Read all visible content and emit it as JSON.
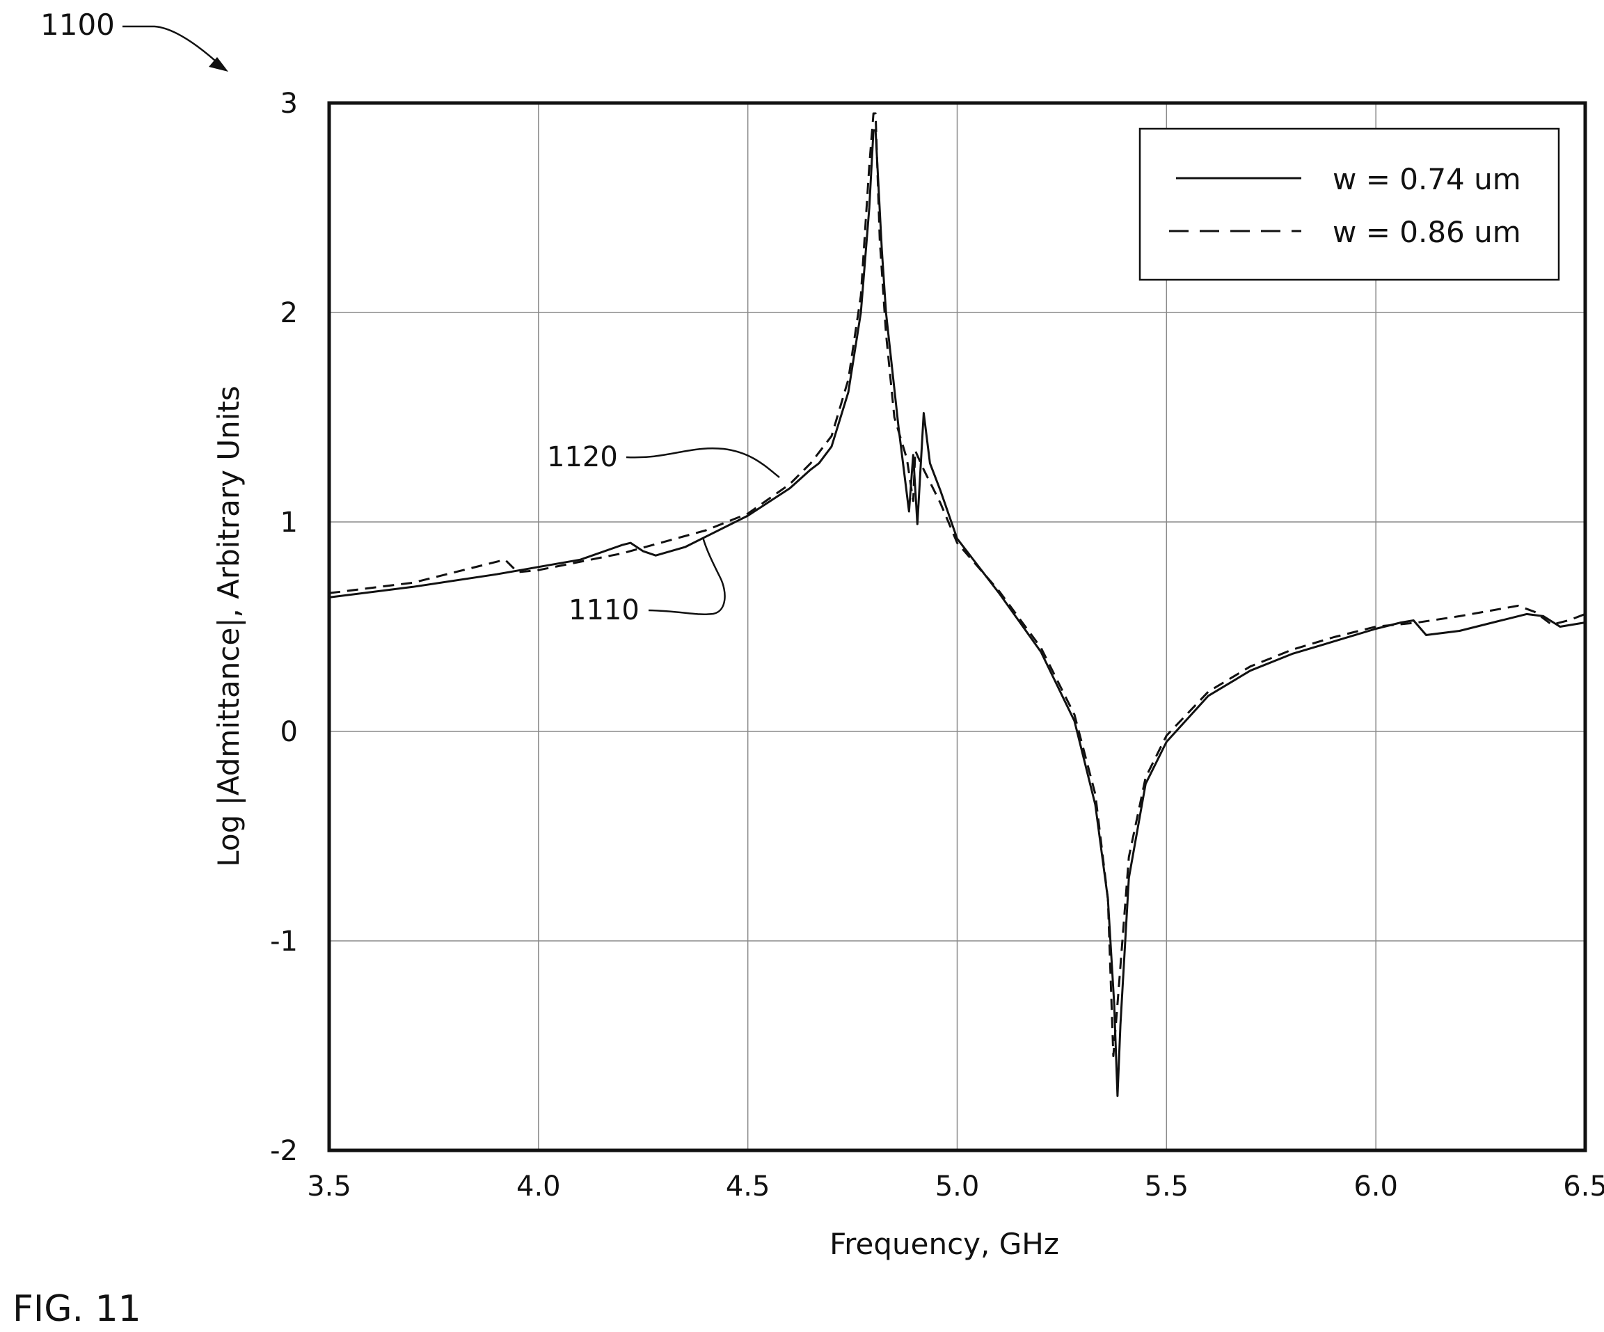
{
  "figure_number": "1100",
  "figure_caption": "FIG. 11",
  "chart_data": {
    "type": "line",
    "xlabel": "Frequency, GHz",
    "ylabel": "Log |Admittance|, Arbitrary Units",
    "xlim": [
      3.5,
      6.5
    ],
    "ylim": [
      -2,
      3
    ],
    "xticks": [
      "3.5",
      "4.0",
      "4.5",
      "5.0",
      "5.5",
      "6.0",
      "6.5"
    ],
    "yticks": [
      "3",
      "2",
      "1",
      "0",
      "-1",
      "-2"
    ],
    "grid": true,
    "legend_position": "top-right",
    "series": [
      {
        "name": "w = 0.74 um",
        "ref": "1110",
        "style": "solid",
        "points": [
          [
            3.5,
            0.64
          ],
          [
            3.7,
            0.69
          ],
          [
            3.9,
            0.75
          ],
          [
            4.1,
            0.82
          ],
          [
            4.2,
            0.89
          ],
          [
            4.22,
            0.9
          ],
          [
            4.25,
            0.86
          ],
          [
            4.28,
            0.84
          ],
          [
            4.35,
            0.88
          ],
          [
            4.5,
            1.03
          ],
          [
            4.6,
            1.16
          ],
          [
            4.65,
            1.25
          ],
          [
            4.67,
            1.28
          ],
          [
            4.7,
            1.36
          ],
          [
            4.74,
            1.62
          ],
          [
            4.77,
            2.0
          ],
          [
            4.79,
            2.5
          ],
          [
            4.8,
            2.87
          ],
          [
            4.805,
            2.87
          ],
          [
            4.82,
            2.3
          ],
          [
            4.83,
            2.0
          ],
          [
            4.86,
            1.45
          ],
          [
            4.885,
            1.05
          ],
          [
            4.895,
            1.32
          ],
          [
            4.905,
            0.99
          ],
          [
            4.92,
            1.52
          ],
          [
            4.935,
            1.28
          ],
          [
            4.96,
            1.15
          ],
          [
            5.0,
            0.92
          ],
          [
            5.1,
            0.66
          ],
          [
            5.2,
            0.38
          ],
          [
            5.28,
            0.05
          ],
          [
            5.33,
            -0.35
          ],
          [
            5.36,
            -0.8
          ],
          [
            5.375,
            -1.3
          ],
          [
            5.383,
            -1.74
          ],
          [
            5.39,
            -1.4
          ],
          [
            5.41,
            -0.7
          ],
          [
            5.45,
            -0.25
          ],
          [
            5.5,
            -0.05
          ],
          [
            5.6,
            0.17
          ],
          [
            5.7,
            0.29
          ],
          [
            5.8,
            0.37
          ],
          [
            5.9,
            0.43
          ],
          [
            6.0,
            0.49
          ],
          [
            6.06,
            0.52
          ],
          [
            6.09,
            0.53
          ],
          [
            6.12,
            0.46
          ],
          [
            6.2,
            0.48
          ],
          [
            6.36,
            0.56
          ],
          [
            6.4,
            0.55
          ],
          [
            6.44,
            0.5
          ],
          [
            6.5,
            0.52
          ]
        ]
      },
      {
        "name": "w = 0.86 um",
        "ref": "1120",
        "style": "dashed",
        "points": [
          [
            3.5,
            0.66
          ],
          [
            3.7,
            0.71
          ],
          [
            3.9,
            0.81
          ],
          [
            3.92,
            0.82
          ],
          [
            3.95,
            0.76
          ],
          [
            4.0,
            0.77
          ],
          [
            4.2,
            0.85
          ],
          [
            4.4,
            0.96
          ],
          [
            4.5,
            1.04
          ],
          [
            4.6,
            1.18
          ],
          [
            4.65,
            1.28
          ],
          [
            4.7,
            1.41
          ],
          [
            4.74,
            1.68
          ],
          [
            4.77,
            2.08
          ],
          [
            4.79,
            2.7
          ],
          [
            4.8,
            2.95
          ],
          [
            4.805,
            2.95
          ],
          [
            4.815,
            2.35
          ],
          [
            4.83,
            1.9
          ],
          [
            4.85,
            1.5
          ],
          [
            4.88,
            1.3
          ],
          [
            4.895,
            1.1
          ],
          [
            4.9,
            1.34
          ],
          [
            4.92,
            1.25
          ],
          [
            4.96,
            1.09
          ],
          [
            5.0,
            0.9
          ],
          [
            5.1,
            0.67
          ],
          [
            5.2,
            0.4
          ],
          [
            5.28,
            0.08
          ],
          [
            5.33,
            -0.3
          ],
          [
            5.36,
            -0.8
          ],
          [
            5.373,
            -1.55
          ],
          [
            5.385,
            -1.25
          ],
          [
            5.41,
            -0.6
          ],
          [
            5.45,
            -0.22
          ],
          [
            5.5,
            -0.02
          ],
          [
            5.6,
            0.19
          ],
          [
            5.7,
            0.31
          ],
          [
            5.8,
            0.39
          ],
          [
            5.9,
            0.45
          ],
          [
            6.0,
            0.5
          ],
          [
            6.1,
            0.52
          ],
          [
            6.2,
            0.55
          ],
          [
            6.34,
            0.6
          ],
          [
            6.38,
            0.57
          ],
          [
            6.42,
            0.51
          ],
          [
            6.46,
            0.53
          ],
          [
            6.5,
            0.56
          ]
        ]
      }
    ]
  }
}
